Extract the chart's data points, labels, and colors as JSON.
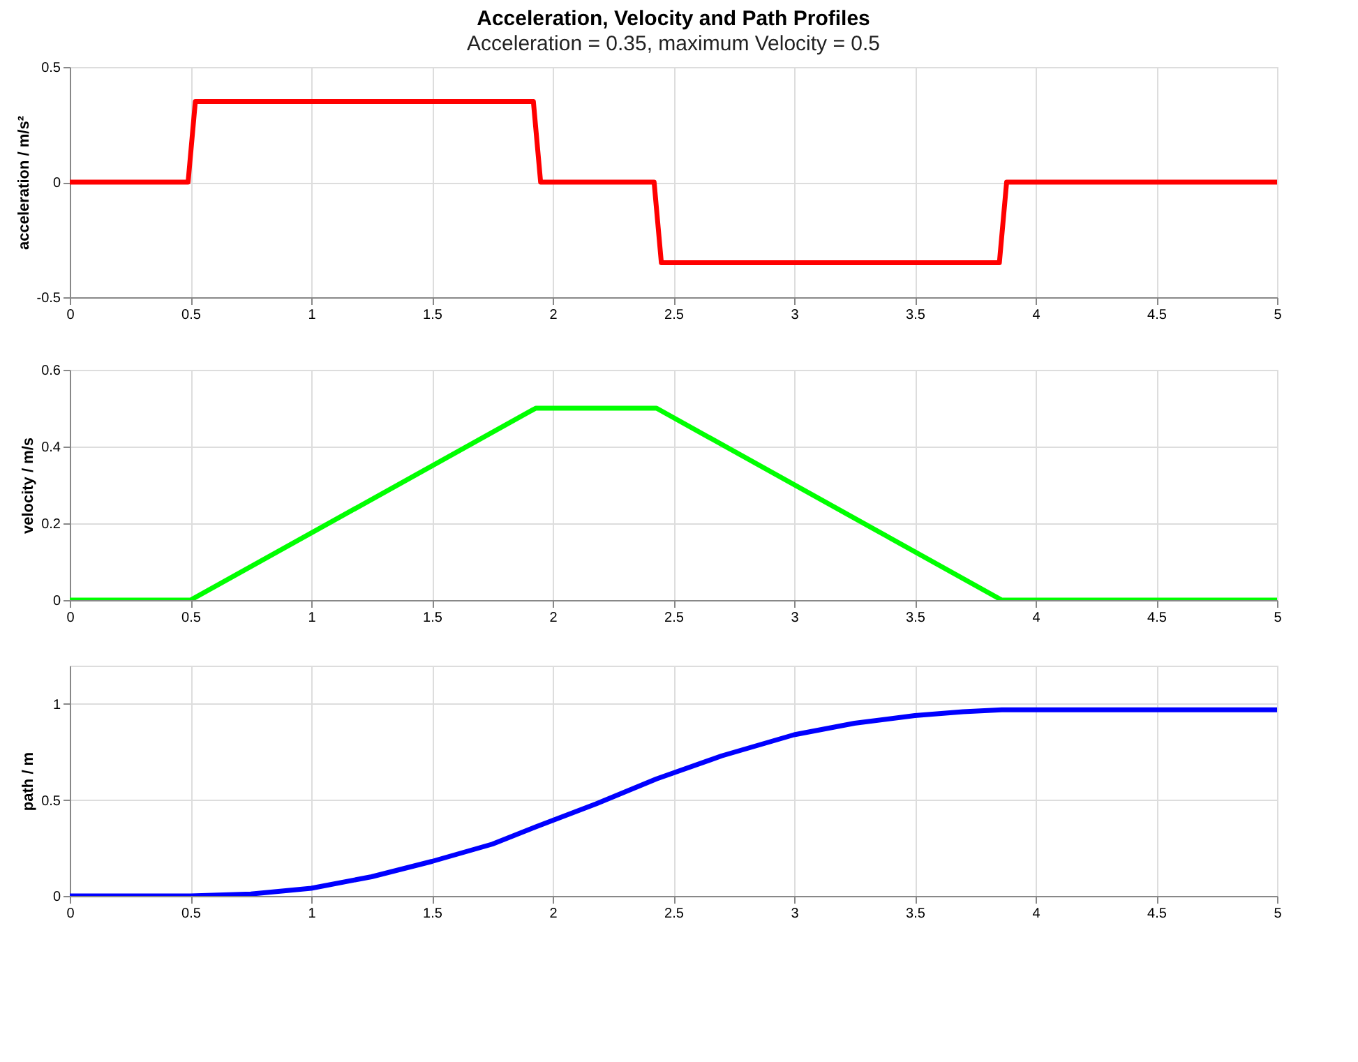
{
  "chart_data": [
    {
      "type": "line",
      "title": "Acceleration, Velocity and Path Profiles",
      "subtitle": "Acceleration = 0.35, maximum Velocity = 0.5",
      "ylabel": "acceleration / m/s²",
      "x": [
        0,
        0.49,
        0.52,
        1.92,
        1.95,
        2.42,
        2.45,
        3.85,
        3.88,
        5
      ],
      "series": [
        {
          "color": "#ff0000",
          "values": [
            0,
            0,
            0.35,
            0.35,
            0,
            0,
            -0.35,
            -0.35,
            0,
            0
          ]
        }
      ],
      "xlim": [
        0,
        5
      ],
      "xticks": [
        0,
        0.5,
        1,
        1.5,
        2,
        2.5,
        3,
        3.5,
        4,
        4.5,
        5
      ],
      "ylim": [
        -0.5,
        0.5
      ],
      "yticks": [
        -0.5,
        0,
        0.5
      ],
      "grid": true
    },
    {
      "type": "line",
      "ylabel": "velocity / m/s",
      "x": [
        0,
        0.5,
        1.93,
        2.43,
        3.86,
        5
      ],
      "series": [
        {
          "color": "#00ff00",
          "values": [
            0,
            0,
            0.5,
            0.5,
            0,
            0
          ]
        }
      ],
      "xlim": [
        0,
        5
      ],
      "xticks": [
        0,
        0.5,
        1,
        1.5,
        2,
        2.5,
        3,
        3.5,
        4,
        4.5,
        5
      ],
      "ylim": [
        0,
        0.6
      ],
      "yticks": [
        0,
        0.2,
        0.4,
        0.6
      ],
      "grid": true
    },
    {
      "type": "line",
      "ylabel": "path / m",
      "x": [
        0,
        0.5,
        0.75,
        1,
        1.25,
        1.5,
        1.75,
        1.93,
        2.18,
        2.43,
        2.7,
        3,
        3.25,
        3.5,
        3.7,
        3.86,
        5
      ],
      "series": [
        {
          "color": "#0000ff",
          "values": [
            0,
            0,
            0.01,
            0.04,
            0.1,
            0.18,
            0.27,
            0.36,
            0.48,
            0.61,
            0.73,
            0.84,
            0.9,
            0.94,
            0.96,
            0.97,
            0.97
          ]
        }
      ],
      "xlim": [
        0,
        5
      ],
      "xticks": [
        0,
        0.5,
        1,
        1.5,
        2,
        2.5,
        3,
        3.5,
        4,
        4.5,
        5
      ],
      "ylim": [
        0,
        1.2
      ],
      "yticks": [
        0,
        0.5,
        1
      ],
      "grid": true
    }
  ]
}
